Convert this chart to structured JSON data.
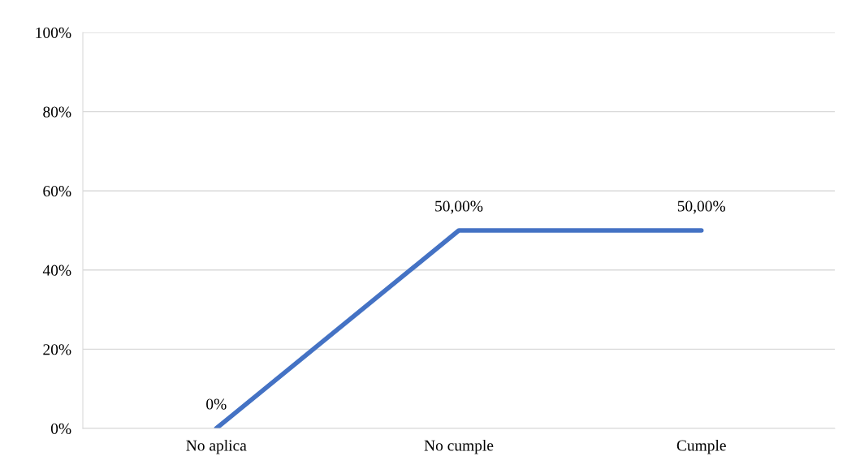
{
  "chart_data": {
    "type": "line",
    "categories": [
      "No aplica",
      "No cumple",
      "Cumple"
    ],
    "series": [
      {
        "color": "#4472c4",
        "values": [
          0,
          50,
          50
        ],
        "value_labels": [
          "0%",
          "50,00%",
          "50,00%"
        ]
      }
    ],
    "ylim": [
      0,
      100
    ],
    "yticks": [
      {
        "value": 0,
        "label": "0%"
      },
      {
        "value": 20,
        "label": "20%"
      },
      {
        "value": 40,
        "label": "40%"
      },
      {
        "value": 60,
        "label": "60%"
      },
      {
        "value": 80,
        "label": "80%"
      },
      {
        "value": 100,
        "label": "100%"
      }
    ],
    "grid": "y",
    "marker": "none",
    "line_style": "solid"
  }
}
